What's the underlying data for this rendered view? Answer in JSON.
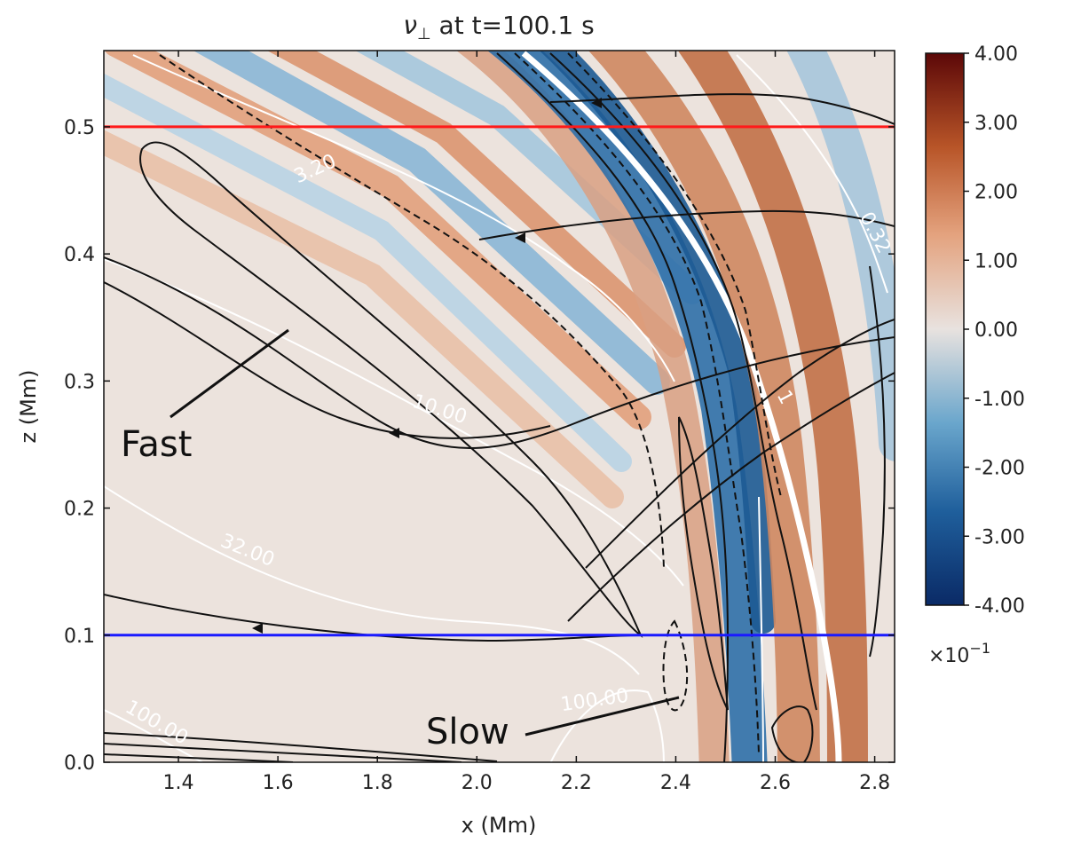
{
  "chart_data": {
    "type": "heatmap",
    "title_symbol": "ν",
    "title_sub": "⊥",
    "title_rest": " at t=100.1 s",
    "xlabel": "x (Mm)",
    "ylabel": "z (Mm)",
    "xlim": [
      1.25,
      2.84
    ],
    "ylim": [
      0.0,
      0.56
    ],
    "xticks": [
      1.4,
      1.6,
      1.8,
      2.0,
      2.2,
      2.4,
      2.6,
      2.8
    ],
    "xtick_labels": [
      "1.4",
      "1.6",
      "1.8",
      "2.0",
      "2.2",
      "2.4",
      "2.6",
      "2.8"
    ],
    "yticks": [
      0.0,
      0.1,
      0.2,
      0.3,
      0.4,
      0.5
    ],
    "ytick_labels": [
      "0.0",
      "0.1",
      "0.2",
      "0.3",
      "0.4",
      "0.5"
    ],
    "colorbar": {
      "vmin": -4.0,
      "vmax": 4.0,
      "ticks": [
        4,
        3,
        2,
        1,
        0,
        -1,
        -2,
        -3,
        -4
      ],
      "tick_labels": [
        "4.00",
        "3.00",
        "2.00",
        "1.00",
        "0.00",
        "-1.00",
        "-2.00",
        "-3.00",
        "-4.00"
      ],
      "multiplier_base": "×10",
      "multiplier_exp": "−1",
      "colors": [
        "#0a2a66",
        "#1f5f9c",
        "#6aa6cc",
        "#e8e2df",
        "#e4a37f",
        "#b85528",
        "#5c0808"
      ]
    },
    "horizontal_lines": [
      {
        "name": "red-line",
        "z": 0.5,
        "color": "#ff1a1a"
      },
      {
        "name": "blue-line",
        "z": 0.1,
        "color": "#1a1aff"
      }
    ],
    "contour_labels": [
      "3.20",
      "10.00",
      "32.00",
      "100.00",
      "100.00",
      "0.32",
      "1"
    ],
    "annotations": [
      {
        "name": "fast-annotation",
        "text": "Fast"
      },
      {
        "name": "slow-annotation",
        "text": "Slow"
      }
    ]
  }
}
